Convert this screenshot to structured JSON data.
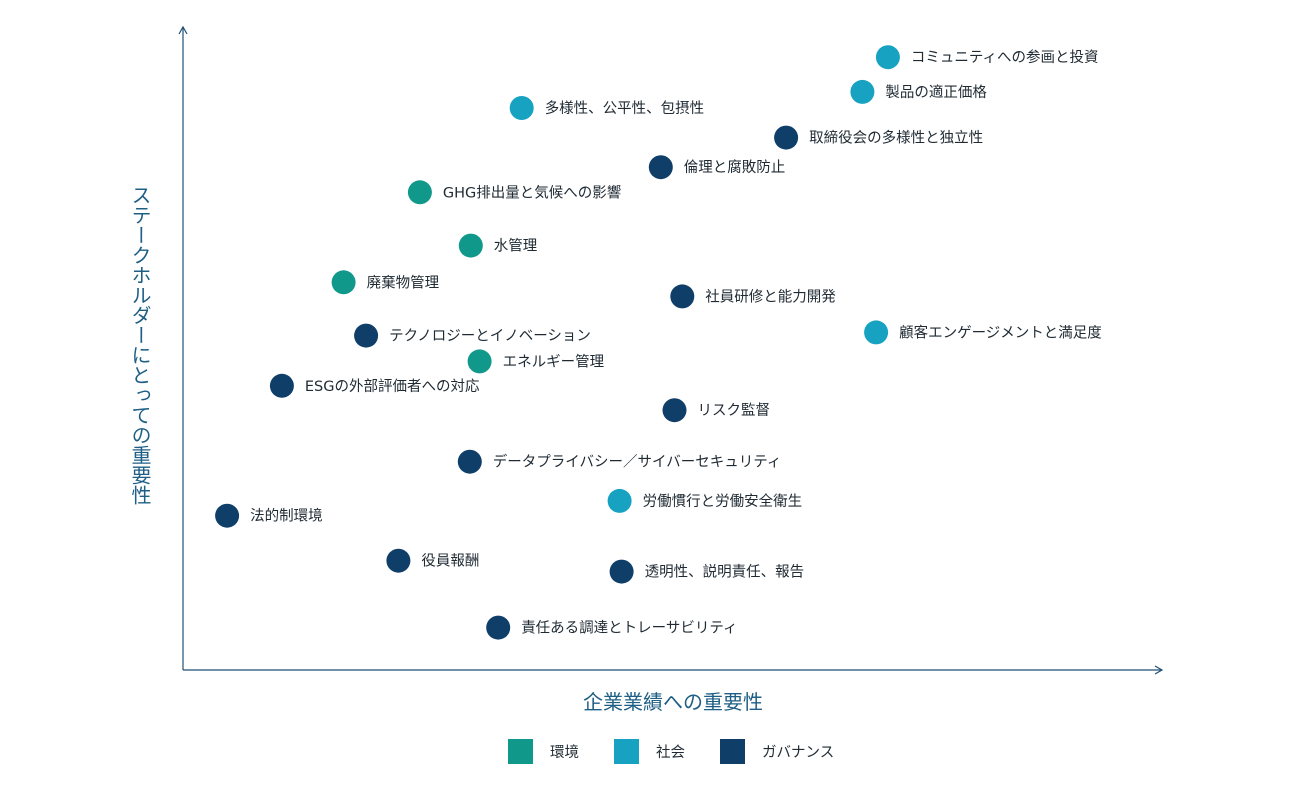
{
  "chart_data": {
    "type": "scatter",
    "title": "",
    "xlabel": "企業業績への重要性",
    "ylabel": "ステークホルダーにとっての重要性",
    "xlim": [
      0,
      100
    ],
    "ylim": [
      0,
      100
    ],
    "grid": false,
    "legend_position": "bottom-center",
    "categories": [
      {
        "key": "env",
        "name": "環境",
        "color": "#10998b"
      },
      {
        "key": "soc",
        "name": "社会",
        "color": "#17a2c1"
      },
      {
        "key": "gov",
        "name": "ガバナンス",
        "color": "#0f3e68"
      }
    ],
    "points": [
      {
        "label": "コミュニティへの参画と投資",
        "category": "soc",
        "x": 72.0,
        "y": 95.3
      },
      {
        "label": "製品の適正価格",
        "category": "soc",
        "x": 69.4,
        "y": 89.9
      },
      {
        "label": "多様性、公平性、包摂性",
        "category": "soc",
        "x": 34.6,
        "y": 87.4
      },
      {
        "label": "取締役会の多様性と独立性",
        "category": "gov",
        "x": 61.6,
        "y": 82.8
      },
      {
        "label": "倫理と腐敗防止",
        "category": "gov",
        "x": 48.8,
        "y": 78.2
      },
      {
        "label": "GHG排出量と気候への影響",
        "category": "env",
        "x": 24.2,
        "y": 74.3
      },
      {
        "label": "水管理",
        "category": "env",
        "x": 29.4,
        "y": 66.0
      },
      {
        "label": "廃棄物管理",
        "category": "env",
        "x": 16.4,
        "y": 60.3
      },
      {
        "label": "社員研修と能力開発",
        "category": "gov",
        "x": 51.0,
        "y": 58.1
      },
      {
        "label": "顧客エンゲージメントと満足度",
        "category": "soc",
        "x": 70.8,
        "y": 52.5
      },
      {
        "label": "テクノロジーとイノベーション",
        "category": "gov",
        "x": 18.7,
        "y": 52.0
      },
      {
        "label": "エネルギー管理",
        "category": "env",
        "x": 30.3,
        "y": 48.0
      },
      {
        "label": "ESGの外部評価者への対応",
        "category": "gov",
        "x": 10.1,
        "y": 44.2
      },
      {
        "label": "リスク監督",
        "category": "gov",
        "x": 50.2,
        "y": 40.4
      },
      {
        "label": "データプライバシー／サイバーセキュリティ",
        "category": "gov",
        "x": 29.3,
        "y": 32.4
      },
      {
        "label": "労働慣行と労働安全衛生",
        "category": "soc",
        "x": 44.6,
        "y": 26.3
      },
      {
        "label": "法的制環境",
        "category": "gov",
        "x": 4.5,
        "y": 24.0
      },
      {
        "label": "役員報酬",
        "category": "gov",
        "x": 22.0,
        "y": 17.0
      },
      {
        "label": "透明性、説明責任、報告",
        "category": "gov",
        "x": 44.8,
        "y": 15.3
      },
      {
        "label": "責任ある調達とトレーサビリティ",
        "category": "gov",
        "x": 32.2,
        "y": 6.6
      }
    ]
  }
}
